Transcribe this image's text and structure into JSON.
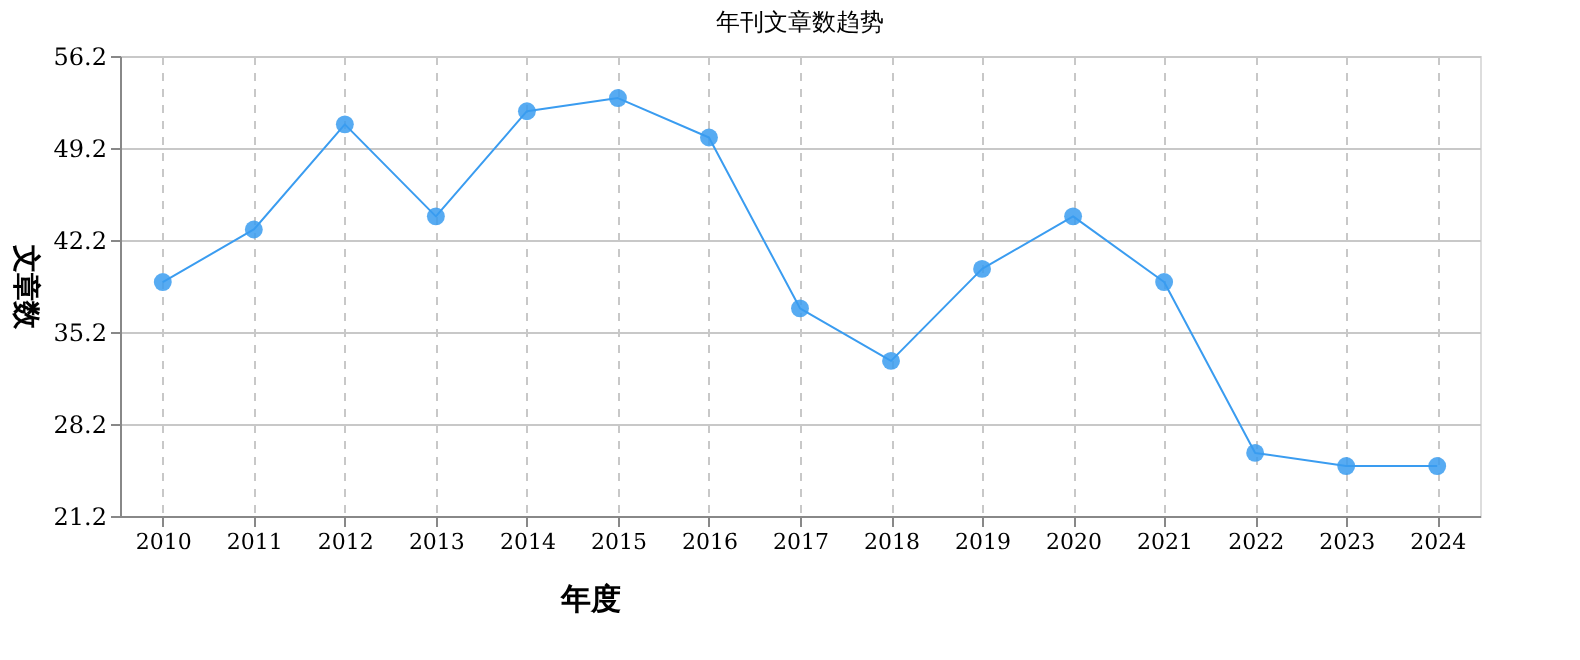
{
  "chart_data": {
    "type": "line",
    "title": "年刊文章数趋势",
    "xlabel": "年度",
    "ylabel": "文章数",
    "categories": [
      "2010",
      "2011",
      "2012",
      "2013",
      "2014",
      "2015",
      "2016",
      "2017",
      "2018",
      "2019",
      "2020",
      "2021",
      "2022",
      "2023",
      "2024"
    ],
    "series": [
      {
        "color": "#3a9cf0",
        "values": [
          39,
          43,
          51,
          44,
          52,
          53,
          50,
          37,
          33,
          40,
          44,
          39,
          26,
          25,
          25
        ]
      }
    ],
    "ylim": [
      21.2,
      56.2
    ],
    "yticks": [
      21.2,
      28.2,
      35.2,
      42.2,
      49.2,
      56.2
    ],
    "grid": true,
    "marker": "circle",
    "line_style": "solid"
  }
}
